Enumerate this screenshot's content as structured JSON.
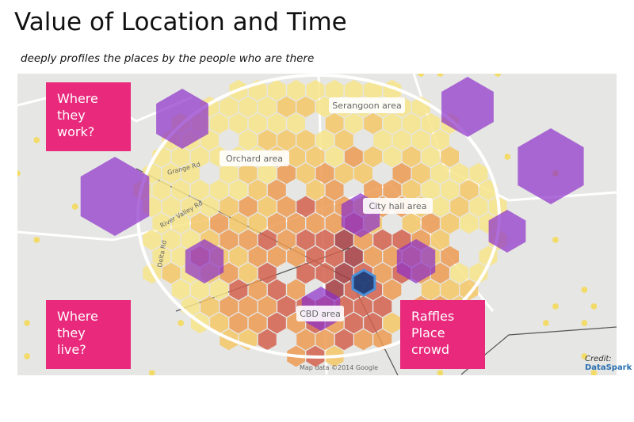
{
  "header": {
    "title": "Value of Location and Time",
    "subtitle": "deeply profiles the places by the people who are there"
  },
  "map": {
    "area_labels": [
      "Serangoon area",
      "Orchard area",
      "City hall area",
      "CBD area"
    ],
    "street_labels": [
      "Grange Rd",
      "River Valley Rd",
      "Delta Rd"
    ],
    "attribution": "Map data ©2014 Google",
    "credit": {
      "label": "Credit:",
      "source": "DataSpark"
    }
  },
  "callouts": [
    "Where they work?",
    "Where they live?",
    "Raffles Place crowd"
  ]
}
